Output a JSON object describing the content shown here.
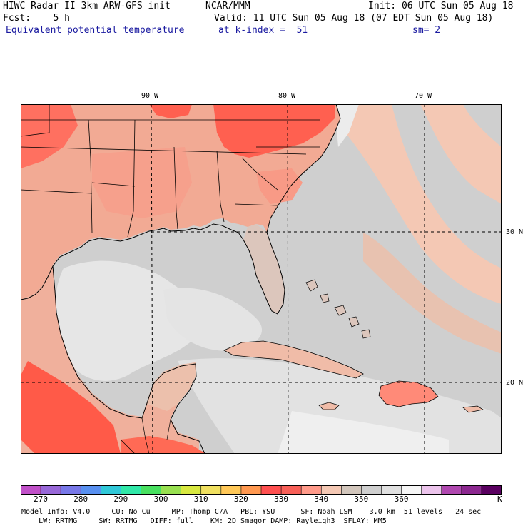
{
  "header": {
    "line1_left": "HIWC Radar II 3km ARW-GFS init",
    "line1_mid": "NCAR/MMM",
    "line1_right": "Init: 06 UTC Sun 05 Aug 18",
    "line2_left": "Fcst:    5 h",
    "line2_right": "Valid: 11 UTC Sun 05 Aug 18 (07 EDT Sun 05 Aug 18)",
    "field": "Equivalent potential temperature",
    "level": "at k-index =  51",
    "smoothing": "sm= 2"
  },
  "map": {
    "lon_labels": [
      "90 W",
      "80 W",
      "70 W"
    ],
    "lat_labels": [
      "30 N",
      "20 N"
    ]
  },
  "colorbar": {
    "unit": "K",
    "tick_labels": [
      "270",
      "280",
      "290",
      "300",
      "310",
      "320",
      "330",
      "340",
      "350",
      "360"
    ],
    "colors": [
      "#c050c8",
      "#9868d8",
      "#7878e8",
      "#5890f0",
      "#30c8d8",
      "#30e8a8",
      "#48e060",
      "#98e050",
      "#d8e840",
      "#f0e060",
      "#ffc858",
      "#ff9850",
      "#ff5050",
      "#f86058",
      "#ff9a8a",
      "#f4c8b4",
      "#d2c6bc",
      "#cfcfcf",
      "#e0e0e0",
      "#f6f6f6",
      "#ecc4ec",
      "#b048b0",
      "#8c2890",
      "#5a0060"
    ]
  },
  "footer": {
    "line1": "Model Info: V4.0     CU: No Cu     MP: Thomp C/A   PBL: YSU      SF: Noah LSM    3.0 km  51 levels   24 sec",
    "line2": "    LW: RRTMG     SW: RRTMG   DIFF: full    KM: 2D Smagor DAMP: Rayleigh3  SFLAY: MM5"
  }
}
